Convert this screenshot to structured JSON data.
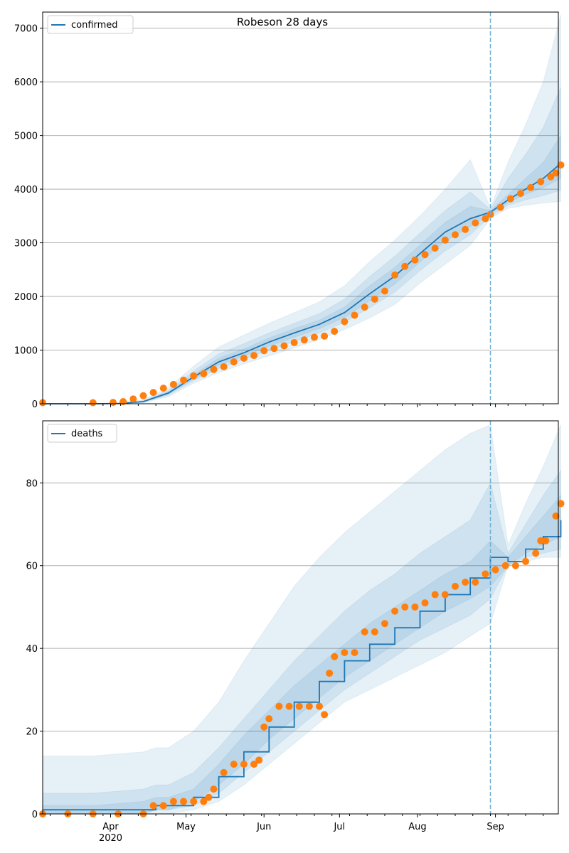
{
  "chart_data": [
    {
      "type": "line",
      "title": "Robeson 28 days",
      "legend": {
        "label": "confirmed",
        "placement": "top-left"
      },
      "ylim": [
        0,
        7300
      ],
      "yticks": [
        0,
        1000,
        2000,
        3000,
        4000,
        5000,
        6000,
        7000
      ],
      "grid": "y",
      "forecast_start": "2020-08-30",
      "series": {
        "model_days": [
          0,
          20,
          30,
          40,
          50,
          60,
          70,
          80,
          90,
          100,
          110,
          120,
          130,
          140,
          150,
          160,
          170,
          178,
          185,
          192,
          199,
          206
        ],
        "median": [
          0,
          0,
          5,
          40,
          200,
          500,
          780,
          950,
          1150,
          1320,
          1480,
          1700,
          2050,
          2380,
          2800,
          3200,
          3450,
          3570,
          3800,
          4000,
          4200,
          4480
        ],
        "band95_lo": [
          0,
          0,
          0,
          20,
          130,
          380,
          580,
          740,
          890,
          1040,
          1200,
          1380,
          1600,
          1850,
          2250,
          2600,
          2950,
          3450,
          3640,
          3700,
          3740,
          3770
        ],
        "band95_hi": [
          0,
          0,
          15,
          70,
          300,
          700,
          1060,
          1280,
          1500,
          1700,
          1900,
          2200,
          2650,
          3050,
          3500,
          4000,
          4550,
          3650,
          4500,
          5200,
          6000,
          7250
        ],
        "band80_lo": [
          0,
          0,
          2,
          30,
          160,
          430,
          660,
          830,
          1000,
          1160,
          1320,
          1520,
          1790,
          2080,
          2480,
          2850,
          3150,
          3500,
          3700,
          3800,
          3880,
          3980
        ],
        "band80_hi": [
          0,
          0,
          10,
          55,
          250,
          610,
          930,
          1120,
          1320,
          1500,
          1680,
          1950,
          2370,
          2750,
          3180,
          3600,
          3950,
          3620,
          4200,
          4650,
          5150,
          5900
        ],
        "band50_lo": [
          0,
          0,
          4,
          35,
          180,
          465,
          720,
          890,
          1075,
          1240,
          1400,
          1610,
          1920,
          2230,
          2640,
          3030,
          3300,
          3540,
          3750,
          3900,
          4030,
          4200
        ],
        "band50_hi": [
          0,
          0,
          7,
          47,
          225,
          545,
          850,
          1020,
          1225,
          1400,
          1560,
          1800,
          2200,
          2540,
          2960,
          3380,
          3680,
          3600,
          3900,
          4200,
          4500,
          5000
        ],
        "observed_days": [
          0,
          20,
          28,
          32,
          36,
          40,
          44,
          48,
          52,
          56,
          60,
          64,
          68,
          72,
          76,
          80,
          84,
          88,
          92,
          96,
          100,
          104,
          108,
          112,
          116,
          120,
          124,
          128,
          132,
          136,
          140,
          144,
          148,
          152,
          156,
          160,
          164,
          168,
          172,
          176,
          178,
          182,
          186,
          190,
          194,
          198,
          202,
          204,
          206
        ],
        "observed": [
          20,
          20,
          25,
          40,
          90,
          150,
          210,
          290,
          360,
          440,
          520,
          560,
          640,
          690,
          780,
          850,
          900,
          990,
          1030,
          1080,
          1140,
          1190,
          1240,
          1260,
          1350,
          1530,
          1650,
          1800,
          1950,
          2100,
          2400,
          2560,
          2680,
          2780,
          2900,
          3050,
          3150,
          3250,
          3370,
          3450,
          3530,
          3660,
          3820,
          3920,
          4030,
          4140,
          4230,
          4300,
          4450
        ]
      }
    },
    {
      "type": "line",
      "legend": {
        "label": "deaths",
        "placement": "top-left"
      },
      "ylim": [
        0,
        95
      ],
      "yticks": [
        0,
        20,
        40,
        60,
        80
      ],
      "grid": "y",
      "forecast_start": "2020-08-30",
      "xticks": [
        "Apr\n2020",
        "May",
        "Jun",
        "Jul",
        "Aug",
        "Sep"
      ],
      "series": {
        "model_days": [
          0,
          20,
          40,
          45,
          50,
          60,
          70,
          80,
          90,
          100,
          110,
          120,
          130,
          140,
          150,
          160,
          170,
          178,
          185,
          192,
          199,
          206
        ],
        "median": [
          1,
          1,
          1,
          2,
          2,
          4,
          9,
          15,
          21,
          27,
          32,
          37,
          41,
          45,
          49,
          53,
          57,
          62,
          61,
          64,
          67,
          71
        ],
        "band95_lo": [
          0,
          0,
          0,
          0,
          0,
          1,
          3,
          7,
          12,
          17,
          22,
          27,
          30,
          33,
          36,
          39,
          43,
          46,
          60,
          61,
          62,
          62
        ],
        "band95_hi": [
          14,
          14,
          15,
          16,
          16,
          20,
          27,
          37,
          46,
          55,
          62,
          68,
          73,
          78,
          83,
          88,
          92,
          94,
          65,
          75,
          84,
          94
        ],
        "band80_lo": [
          0,
          0,
          0,
          1,
          1,
          2,
          5,
          10,
          15,
          20,
          25,
          30,
          34,
          38,
          42,
          45,
          48,
          52,
          60,
          62,
          63,
          64
        ],
        "band80_hi": [
          5,
          5,
          6,
          7,
          7,
          10,
          16,
          23,
          30,
          37,
          43,
          49,
          54,
          58,
          63,
          67,
          71,
          80,
          63,
          70,
          77,
          83
        ],
        "band50_lo": [
          0,
          0,
          0,
          1,
          1,
          3,
          7,
          12,
          18,
          23,
          28,
          33,
          37,
          41,
          45,
          49,
          52,
          55,
          60,
          63,
          65,
          67
        ],
        "band50_hi": [
          2,
          2,
          3,
          4,
          4,
          6,
          12,
          19,
          25,
          31,
          36,
          41,
          46,
          50,
          54,
          58,
          61,
          66,
          62,
          67,
          72,
          77
        ],
        "observed_days": [
          0,
          10,
          20,
          30,
          40,
          44,
          48,
          52,
          56,
          60,
          64,
          66,
          68,
          72,
          76,
          80,
          84,
          86,
          88,
          90,
          94,
          98,
          102,
          106,
          110,
          112,
          114,
          116,
          120,
          124,
          128,
          132,
          136,
          140,
          144,
          148,
          152,
          156,
          160,
          164,
          168,
          172,
          176,
          180,
          184,
          188,
          192,
          196,
          198,
          200,
          204,
          206
        ],
        "observed": [
          0,
          0,
          0,
          0,
          0,
          2,
          2,
          3,
          3,
          3,
          3,
          4,
          6,
          10,
          12,
          12,
          12,
          13,
          21,
          23,
          26,
          26,
          26,
          26,
          26,
          24,
          34,
          38,
          39,
          39,
          44,
          44,
          46,
          49,
          50,
          50,
          51,
          53,
          53,
          55,
          56,
          56,
          58,
          59,
          60,
          60,
          61,
          63,
          66,
          66,
          72,
          75
        ]
      }
    }
  ],
  "x_axis": {
    "start_label": "2020-03-05",
    "tick_labels": [
      {
        "label": "Apr",
        "sub": "2020",
        "day": 27
      },
      {
        "label": "May",
        "day": 57
      },
      {
        "label": "Jun",
        "day": 88
      },
      {
        "label": "Jul",
        "day": 118
      },
      {
        "label": "Aug",
        "day": 149
      },
      {
        "label": "Sep",
        "day": 180
      }
    ],
    "forecast_day": 178,
    "end_day": 205
  },
  "colors": {
    "line": "#1f77b4",
    "observed": "#ff7f0e",
    "band": "#1f77b4",
    "grid": "#b0b0b0",
    "forecast_line": "#6baed6"
  }
}
